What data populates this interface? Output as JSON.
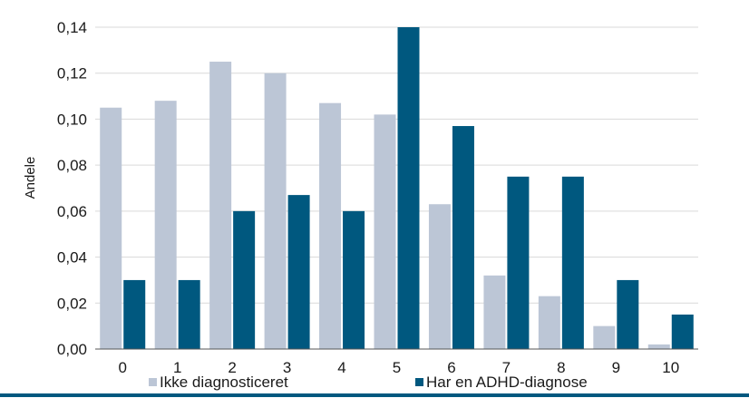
{
  "chart_data": {
    "type": "bar",
    "ylabel": "Andele",
    "xlabel": "",
    "categories": [
      "0",
      "1",
      "2",
      "3",
      "4",
      "5",
      "6",
      "7",
      "8",
      "9",
      "10"
    ],
    "series": [
      {
        "name": "Ikke diagnosticeret",
        "color": "#bcc6d6",
        "values": [
          0.105,
          0.108,
          0.125,
          0.12,
          0.107,
          0.102,
          0.063,
          0.032,
          0.023,
          0.01,
          0.002
        ]
      },
      {
        "name": "Har en ADHD-diagnose",
        "color": "#00587f",
        "values": [
          0.03,
          0.03,
          0.06,
          0.067,
          0.06,
          0.14,
          0.097,
          0.075,
          0.075,
          0.03,
          0.015
        ]
      }
    ],
    "ylim": [
      0,
      0.14
    ],
    "yticks": [
      "0,00",
      "0,02",
      "0,04",
      "0,06",
      "0,08",
      "0,10",
      "0,12",
      "0,14"
    ],
    "ytick_values": [
      0,
      0.02,
      0.04,
      0.06,
      0.08,
      0.1,
      0.12,
      0.14
    ],
    "grid": true,
    "legend_position": "bottom",
    "bottom_rule_color": "#00587f"
  }
}
